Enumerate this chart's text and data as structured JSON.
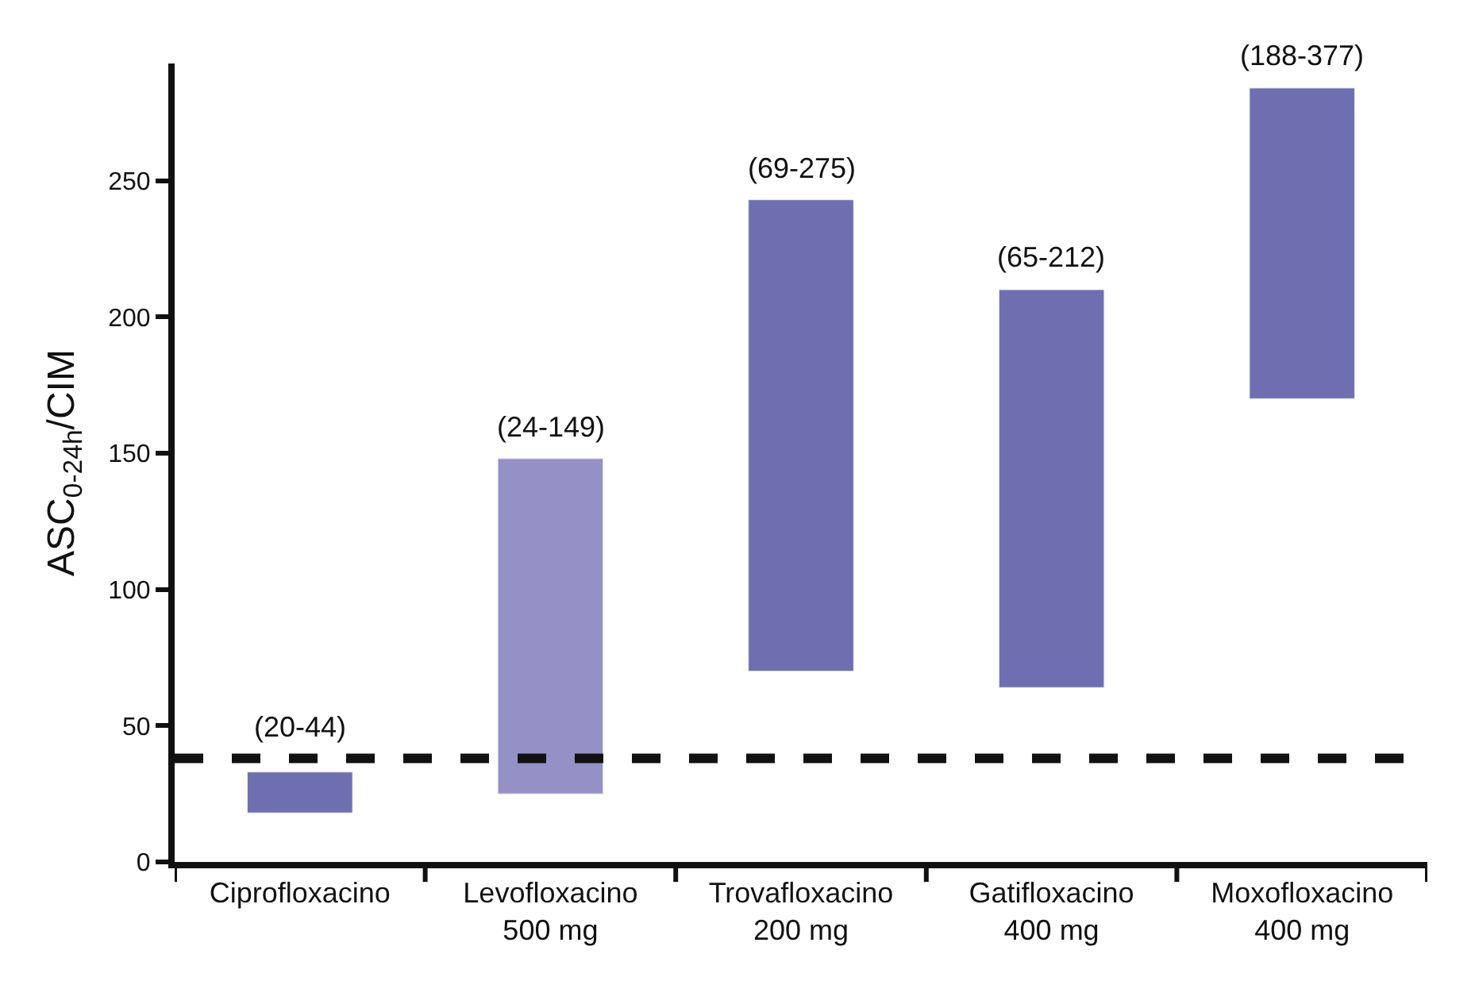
{
  "chart_data": {
    "type": "bar",
    "ylabel": "ASC$_{0-24h}$/CIM",
    "categories": [
      "Ciprofloxacino",
      "Levofloxacino\n500 mg",
      "Trovafloxacino\n200 mg",
      "Gatifloxacino\n400 mg",
      "Moxofloxacino\n400 mg"
    ],
    "base": [
      18,
      25,
      70,
      64,
      170
    ],
    "values": [
      15,
      123,
      173,
      146,
      114
    ],
    "colors": [
      "#6e6eb0",
      "#9491c6",
      "#6e6eb0",
      "#6e6eb0",
      "#6e6eb0"
    ],
    "value_labels": [
      "(20-44)",
      "(24-149)",
      "(69-275)",
      "(65-212)",
      "(188-377)"
    ],
    "ylim": [
      0,
      293
    ],
    "yticks": [
      0,
      50,
      100,
      150,
      200,
      250
    ],
    "ref_lines": [
      {
        "axis": "y",
        "value": 38,
        "label": null,
        "color": "#111111",
        "line_style": "dashed"
      }
    ]
  }
}
